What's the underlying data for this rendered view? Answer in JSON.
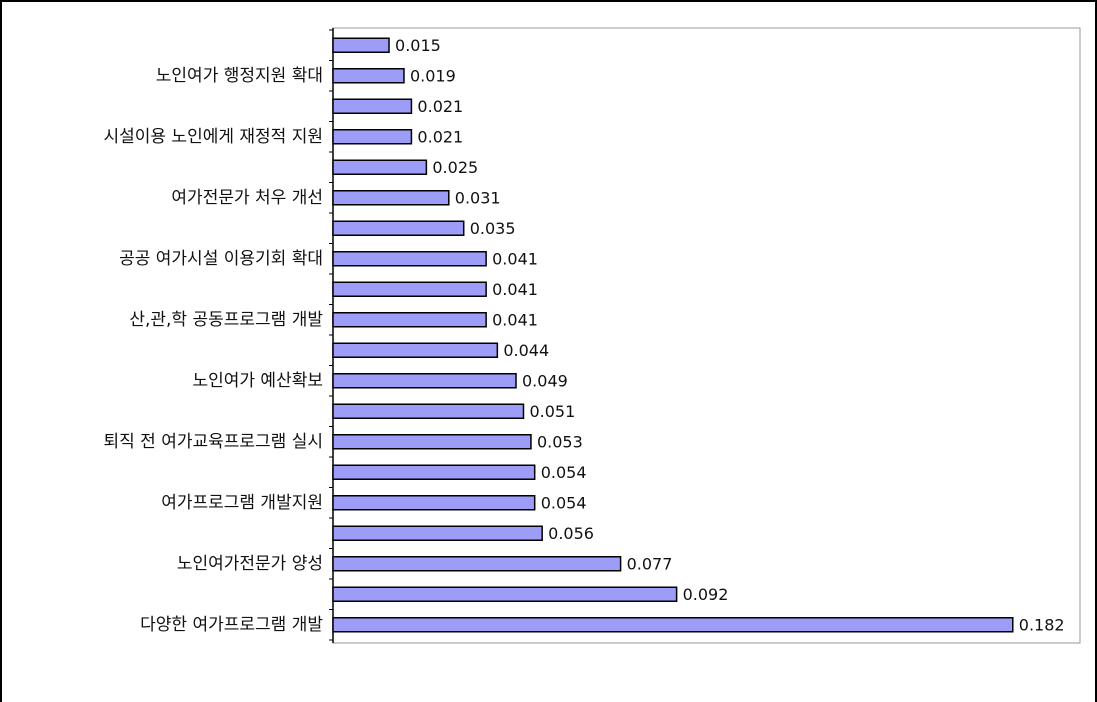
{
  "chart_data": {
    "type": "bar",
    "orientation": "horizontal",
    "categories": [
      null,
      "노인여가 행정지원 확대",
      null,
      "시설이용 노인에게 재정적 지원",
      null,
      "여가전문가 처우 개선",
      null,
      "공공 여가시설 이용기회 확대",
      null,
      "산,관,학 공동프로그램 개발",
      null,
      "노인여가 예산확보",
      null,
      "퇴직 전 여가교육프로그램 실시",
      null,
      "여가프로그램 개발지원",
      null,
      "노인여가전문가 양성",
      null,
      "다양한 여가프로그램 개발"
    ],
    "values": [
      0.015,
      0.019,
      0.021,
      0.021,
      0.025,
      0.031,
      0.035,
      0.041,
      0.041,
      0.041,
      0.044,
      0.049,
      0.051,
      0.053,
      0.054,
      0.054,
      0.056,
      0.077,
      0.092,
      0.182
    ],
    "color": "#9d9df7",
    "xlim": [
      0,
      0.2
    ]
  }
}
